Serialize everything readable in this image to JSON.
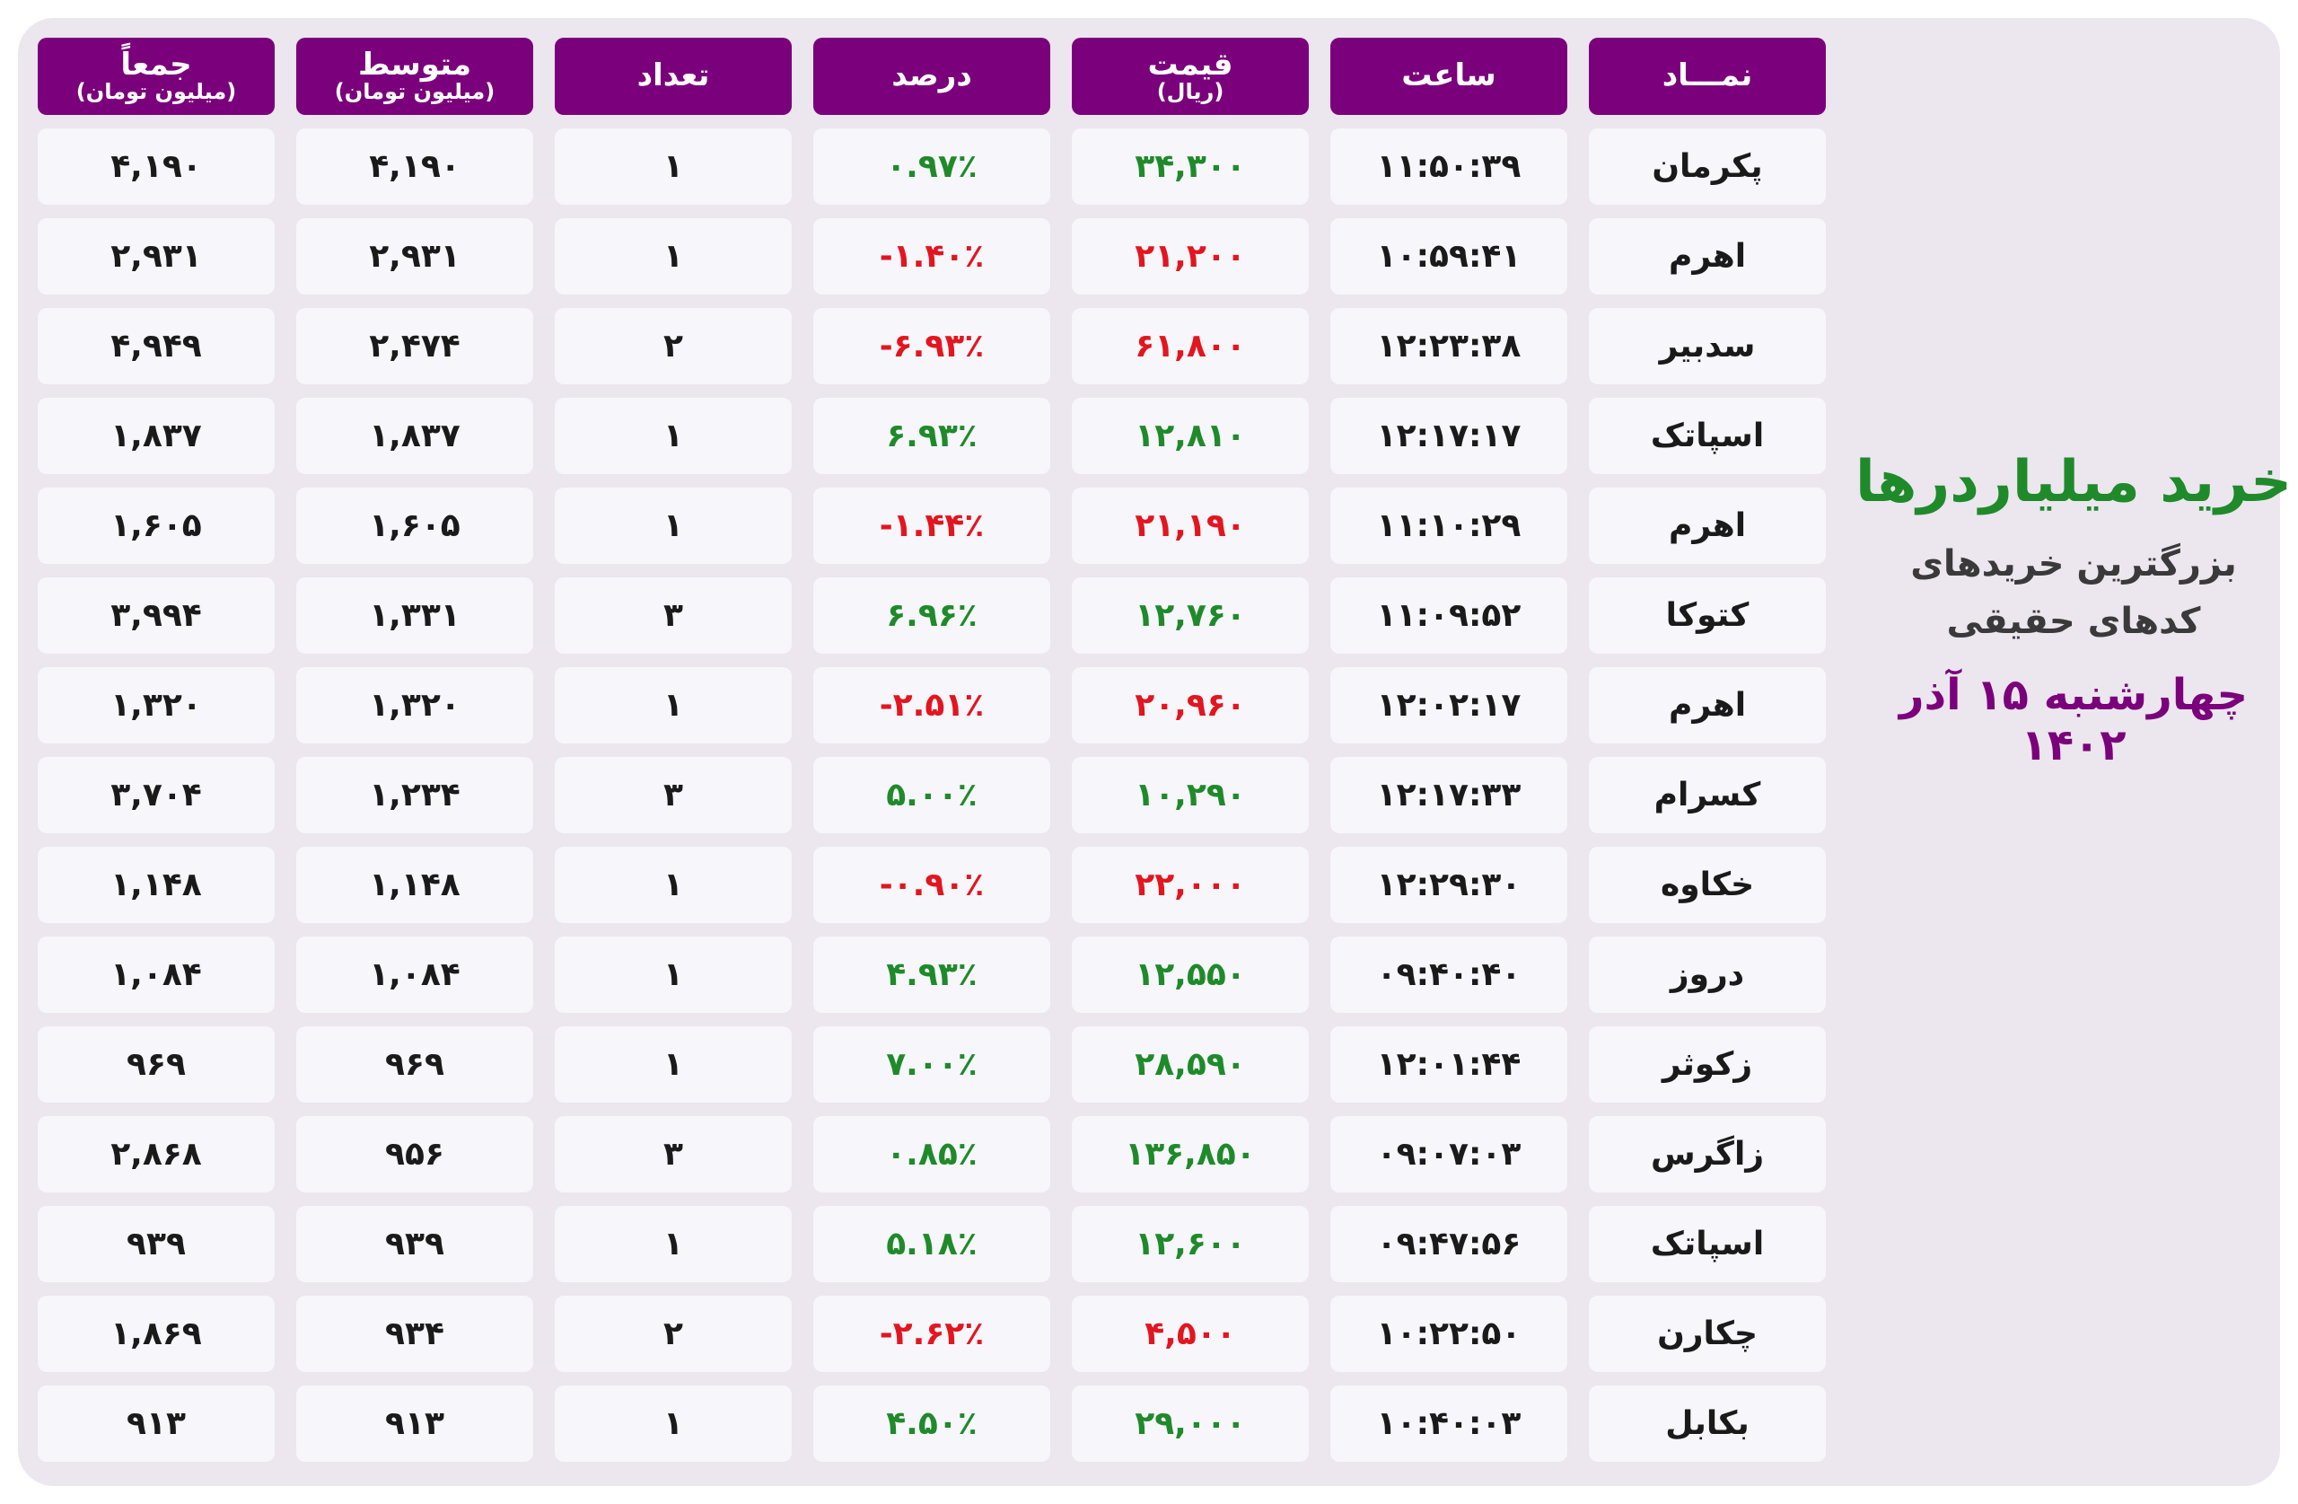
{
  "side_panel": {
    "title": "خرید میلیاردرها",
    "subtitle_line1": "بزرگترین خریدهای",
    "subtitle_line2": "کدهای حقیقی",
    "date": "چهارشنبه ۱۵ آذر ۱۴۰۲"
  },
  "columns": [
    {
      "key": "total",
      "label": "جمعاً",
      "sub": "(میلیون تومان)"
    },
    {
      "key": "avg",
      "label": "متوسط",
      "sub": "(میلیون تومان)"
    },
    {
      "key": "count",
      "label": "تعداد",
      "sub": ""
    },
    {
      "key": "percent",
      "label": "درصد",
      "sub": ""
    },
    {
      "key": "price",
      "label": "قیمت",
      "sub": "(ریال)"
    },
    {
      "key": "time",
      "label": "ساعت",
      "sub": ""
    },
    {
      "key": "symbol",
      "label": "نمـــاد",
      "sub": ""
    }
  ],
  "colors": {
    "positive": "#1f8a2a",
    "negative": "#e3151f",
    "header": "#7b007b"
  },
  "rows": [
    {
      "symbol": "پکرمان",
      "time": "۱۱:۵۰:۳۹",
      "price": "۳۴,۳۰۰",
      "percent": "۰.۹۷٪",
      "count": "۱",
      "avg": "۴,۱۹۰",
      "total": "۴,۱۹۰",
      "trend": "pos"
    },
    {
      "symbol": "اهرم",
      "time": "۱۰:۵۹:۴۱",
      "price": "۲۱,۲۰۰",
      "percent": "-۱.۴۰٪",
      "count": "۱",
      "avg": "۲,۹۳۱",
      "total": "۲,۹۳۱",
      "trend": "neg"
    },
    {
      "symbol": "سدبیر",
      "time": "۱۲:۲۳:۳۸",
      "price": "۶۱,۸۰۰",
      "percent": "-۶.۹۳٪",
      "count": "۲",
      "avg": "۲,۴۷۴",
      "total": "۴,۹۴۹",
      "trend": "neg"
    },
    {
      "symbol": "اسپاتک",
      "time": "۱۲:۱۷:۱۷",
      "price": "۱۲,۸۱۰",
      "percent": "۶.۹۳٪",
      "count": "۱",
      "avg": "۱,۸۳۷",
      "total": "۱,۸۳۷",
      "trend": "pos"
    },
    {
      "symbol": "اهرم",
      "time": "۱۱:۱۰:۲۹",
      "price": "۲۱,۱۹۰",
      "percent": "-۱.۴۴٪",
      "count": "۱",
      "avg": "۱,۶۰۵",
      "total": "۱,۶۰۵",
      "trend": "neg"
    },
    {
      "symbol": "کتوکا",
      "time": "۱۱:۰۹:۵۲",
      "price": "۱۲,۷۶۰",
      "percent": "۶.۹۶٪",
      "count": "۳",
      "avg": "۱,۳۳۱",
      "total": "۳,۹۹۴",
      "trend": "pos"
    },
    {
      "symbol": "اهرم",
      "time": "۱۲:۰۲:۱۷",
      "price": "۲۰,۹۶۰",
      "percent": "-۲.۵۱٪",
      "count": "۱",
      "avg": "۱,۳۲۰",
      "total": "۱,۳۲۰",
      "trend": "neg"
    },
    {
      "symbol": "کسرام",
      "time": "۱۲:۱۷:۳۳",
      "price": "۱۰,۲۹۰",
      "percent": "۵.۰۰٪",
      "count": "۳",
      "avg": "۱,۲۳۴",
      "total": "۳,۷۰۴",
      "trend": "pos"
    },
    {
      "symbol": "خکاوه",
      "time": "۱۲:۲۹:۳۰",
      "price": "۲۲,۰۰۰",
      "percent": "-۰.۹۰٪",
      "count": "۱",
      "avg": "۱,۱۴۸",
      "total": "۱,۱۴۸",
      "trend": "neg"
    },
    {
      "symbol": "دروز",
      "time": "۰۹:۴۰:۴۰",
      "price": "۱۲,۵۵۰",
      "percent": "۴.۹۳٪",
      "count": "۱",
      "avg": "۱,۰۸۴",
      "total": "۱,۰۸۴",
      "trend": "pos"
    },
    {
      "symbol": "زکوثر",
      "time": "۱۲:۰۱:۴۴",
      "price": "۲۸,۵۹۰",
      "percent": "۷.۰۰٪",
      "count": "۱",
      "avg": "۹۶۹",
      "total": "۹۶۹",
      "trend": "pos"
    },
    {
      "symbol": "زاگرس",
      "time": "۰۹:۰۷:۰۳",
      "price": "۱۳۶,۸۵۰",
      "percent": "۰.۸۵٪",
      "count": "۳",
      "avg": "۹۵۶",
      "total": "۲,۸۶۸",
      "trend": "pos"
    },
    {
      "symbol": "اسپاتک",
      "time": "۰۹:۴۷:۵۶",
      "price": "۱۲,۶۰۰",
      "percent": "۵.۱۸٪",
      "count": "۱",
      "avg": "۹۳۹",
      "total": "۹۳۹",
      "trend": "pos"
    },
    {
      "symbol": "چکارن",
      "time": "۱۰:۲۲:۵۰",
      "price": "۴,۵۰۰",
      "percent": "-۲.۶۲٪",
      "count": "۲",
      "avg": "۹۳۴",
      "total": "۱,۸۶۹",
      "trend": "neg"
    },
    {
      "symbol": "بکابل",
      "time": "۱۰:۴۰:۰۳",
      "price": "۲۹,۰۰۰",
      "percent": "۴.۵۰٪",
      "count": "۱",
      "avg": "۹۱۳",
      "total": "۹۱۳",
      "trend": "pos"
    }
  ]
}
